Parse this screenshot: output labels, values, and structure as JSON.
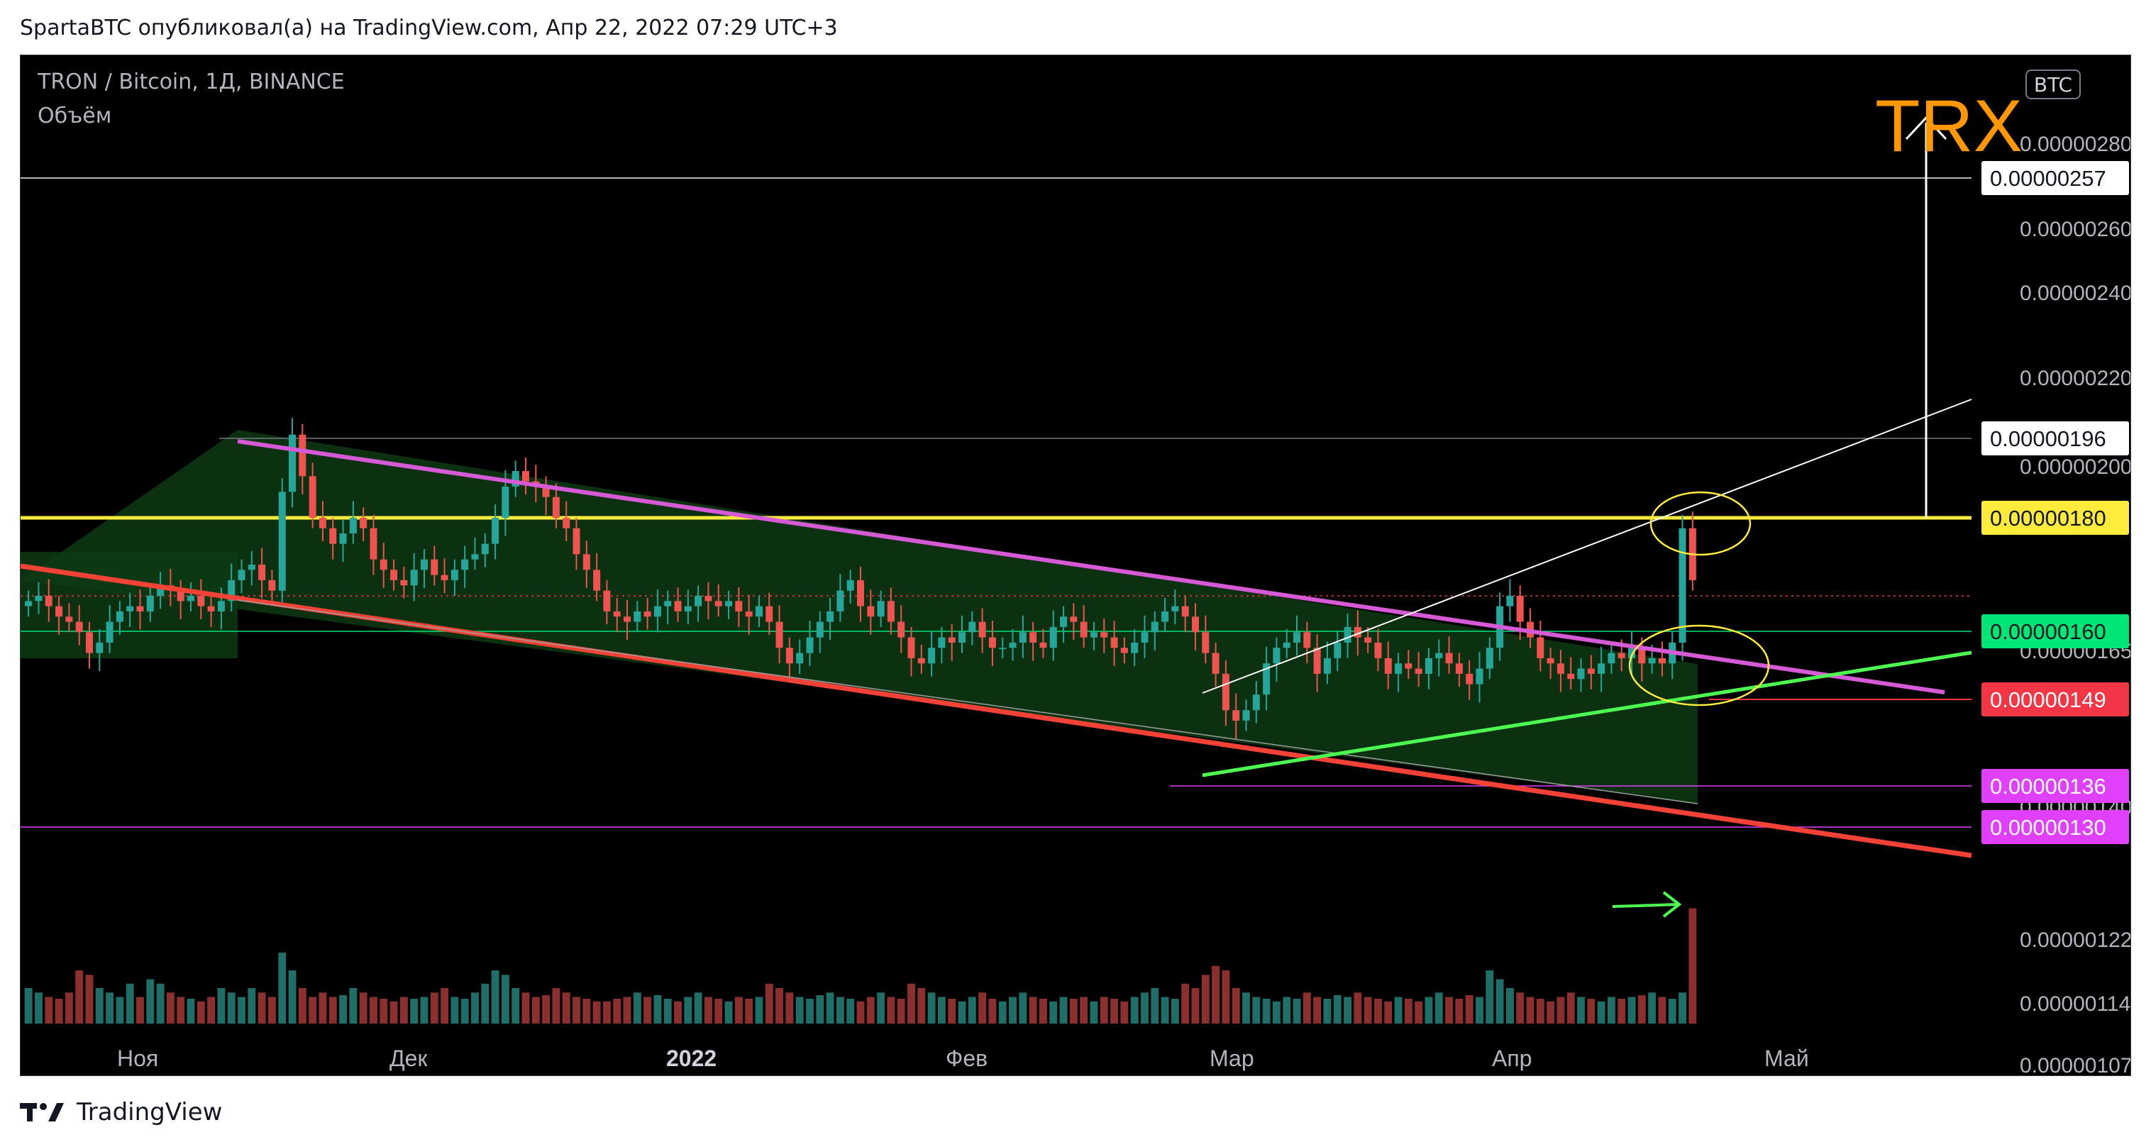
{
  "header": {
    "attribution": "SpartaBTC опубликовал(а) на TradingView.com, Апр 22, 2022 07:29 UTC+3"
  },
  "legend": {
    "symbol": "TRON / Bitcoin, 1Д, BINANCE",
    "volume_label": "Объём"
  },
  "currency_button": "BTC",
  "footer": {
    "brand": "TradingView"
  },
  "colors": {
    "background": "#000000",
    "up_candle": "#26a69a",
    "down_candle": "#ef5350",
    "yellow_level": "#ffeb3b",
    "green_level": "#00e676",
    "red_level": "#f23645",
    "magenta_level": "#e040fb",
    "channel_top": "#d65ad6",
    "channel_bottom": "#f44336",
    "trx_label": "#ff9800"
  },
  "chart_data": {
    "type": "candlestick",
    "symbol": "TRON / Bitcoin",
    "interval": "1Д",
    "exchange": "BINANCE",
    "x_axis_labels": [
      "Ноя",
      "Дек",
      "2022",
      "Фев",
      "Мар",
      "Апр",
      "Май"
    ],
    "y_axis_ticks": [
      "0.00000280",
      "0.00000260",
      "0.00000240",
      "0.00000220",
      "0.00000200",
      "0.00000165",
      "0.00000140",
      "0.00000122",
      "0.00000114",
      "0.00000107"
    ],
    "price_labels": [
      {
        "value": "0.00000257",
        "color": "#ffffff",
        "text_color": "#131722"
      },
      {
        "value": "0.00000196",
        "color": "#ffffff",
        "text_color": "#131722"
      },
      {
        "value": "0.00000180",
        "color": "#ffeb3b",
        "text_color": "#131722"
      },
      {
        "value": "0.00000160",
        "color": "#00e676",
        "text_color": "#131722"
      },
      {
        "value": "0.00000149",
        "color": "#f23645",
        "text_color": "#ffffff"
      },
      {
        "value": "0.00000136",
        "color": "#e040fb",
        "text_color": "#ffffff"
      },
      {
        "value": "0.00000130",
        "color": "#e040fb",
        "text_color": "#ffffff"
      }
    ],
    "annotation": "TRX",
    "dates_range": [
      "2021-10-25",
      "2022-04-22"
    ],
    "closes": [
      1.64,
      1.65,
      1.63,
      1.61,
      1.6,
      1.58,
      1.54,
      1.56,
      1.6,
      1.62,
      1.63,
      1.62,
      1.65,
      1.67,
      1.66,
      1.64,
      1.65,
      1.63,
      1.62,
      1.64,
      1.68,
      1.7,
      1.71,
      1.68,
      1.66,
      1.85,
      1.96,
      1.88,
      1.8,
      1.78,
      1.75,
      1.77,
      1.8,
      1.78,
      1.72,
      1.7,
      1.68,
      1.67,
      1.7,
      1.72,
      1.69,
      1.68,
      1.7,
      1.72,
      1.73,
      1.75,
      1.8,
      1.86,
      1.89,
      1.87,
      1.86,
      1.84,
      1.8,
      1.78,
      1.73,
      1.7,
      1.66,
      1.62,
      1.61,
      1.6,
      1.62,
      1.61,
      1.63,
      1.64,
      1.62,
      1.63,
      1.65,
      1.64,
      1.63,
      1.64,
      1.62,
      1.61,
      1.63,
      1.6,
      1.55,
      1.52,
      1.54,
      1.57,
      1.6,
      1.62,
      1.66,
      1.68,
      1.63,
      1.61,
      1.64,
      1.6,
      1.57,
      1.53,
      1.52,
      1.55,
      1.57,
      1.56,
      1.58,
      1.6,
      1.57,
      1.55,
      1.55,
      1.56,
      1.58,
      1.56,
      1.55,
      1.59,
      1.61,
      1.6,
      1.57,
      1.58,
      1.57,
      1.55,
      1.54,
      1.56,
      1.58,
      1.6,
      1.62,
      1.63,
      1.61,
      1.58,
      1.54,
      1.5,
      1.43,
      1.41,
      1.43,
      1.46,
      1.52,
      1.55,
      1.56,
      1.58,
      1.55,
      1.5,
      1.53,
      1.56,
      1.59,
      1.57,
      1.56,
      1.53,
      1.5,
      1.52,
      1.51,
      1.5,
      1.53,
      1.54,
      1.52,
      1.5,
      1.48,
      1.51,
      1.55,
      1.63,
      1.65,
      1.6,
      1.57,
      1.53,
      1.52,
      1.5,
      1.49,
      1.51,
      1.5,
      1.52,
      1.54,
      1.53,
      1.55,
      1.52,
      1.53,
      1.52,
      1.56,
      1.78,
      1.68
    ],
    "volumes": [
      40,
      35,
      30,
      28,
      35,
      60,
      55,
      40,
      35,
      30,
      45,
      30,
      50,
      45,
      35,
      30,
      28,
      25,
      30,
      40,
      35,
      30,
      40,
      35,
      30,
      80,
      60,
      40,
      30,
      35,
      30,
      32,
      40,
      35,
      30,
      28,
      25,
      30,
      28,
      30,
      35,
      40,
      30,
      28,
      35,
      45,
      60,
      55,
      40,
      35,
      30,
      32,
      40,
      35,
      30,
      28,
      25,
      25,
      28,
      30,
      35,
      30,
      32,
      28,
      25,
      30,
      35,
      30,
      28,
      25,
      30,
      28,
      30,
      45,
      40,
      35,
      30,
      28,
      32,
      35,
      30,
      28,
      25,
      30,
      35,
      30,
      28,
      45,
      40,
      35,
      30,
      28,
      25,
      30,
      35,
      28,
      25,
      30,
      35,
      30,
      28,
      25,
      30,
      28,
      30,
      25,
      30,
      28,
      25,
      30,
      35,
      40,
      30,
      28,
      45,
      40,
      55,
      65,
      60,
      40,
      35,
      30,
      28,
      25,
      30,
      28,
      35,
      30,
      28,
      32,
      30,
      35,
      30,
      28,
      25,
      30,
      28,
      25,
      30,
      35,
      30,
      28,
      32,
      30,
      60,
      50,
      40,
      35,
      30,
      28,
      25,
      30,
      35,
      30,
      28,
      25,
      30,
      28,
      30,
      32,
      35,
      30,
      28,
      35,
      130,
      45
    ],
    "lines": [
      {
        "name": "channel-top",
        "from": [
          "2021-11-14",
          "0.00000197"
        ],
        "to": [
          "2022-05-06",
          "0.00000152"
        ]
      },
      {
        "name": "channel-bottom",
        "from": [
          "2021-10-25",
          "0.00000178"
        ],
        "to": [
          "2022-05-10",
          "0.00000128"
        ]
      },
      {
        "name": "rising-support",
        "from": [
          "2022-02-28",
          "0.00000138"
        ],
        "to": [
          "2022-05-10",
          "0.00000156"
        ]
      },
      {
        "name": "rising-resistance",
        "from": [
          "2022-02-28",
          "0.00000150"
        ],
        "to": [
          "2022-05-10",
          "0.00000210"
        ]
      }
    ]
  }
}
